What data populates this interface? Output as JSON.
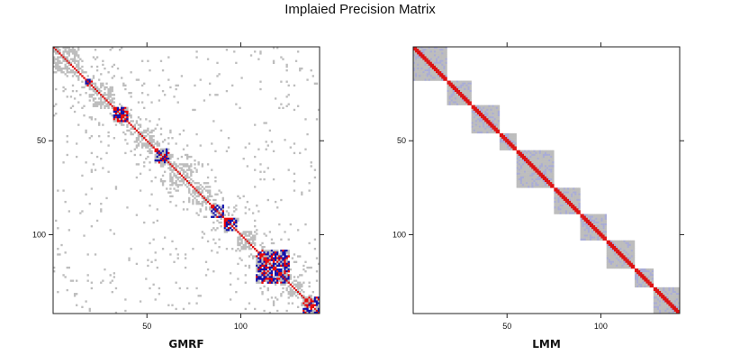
{
  "chart_data": {
    "type": "heatmap",
    "title": "Implaied Precision Matrix",
    "size": 142,
    "colors": {
      "weak": "#bdbdbd",
      "weak_blue": "#a9acd6",
      "diag": "#dd1111",
      "strong_red": "#ee0000",
      "strong_blue": "#1111aa"
    },
    "panels": [
      {
        "id": "gmrf",
        "xlabel": "GMRF",
        "x_ticks": [
          {
            "value": 50,
            "label": "50"
          },
          {
            "value": 100,
            "label": "100"
          }
        ],
        "y_ticks": [
          {
            "value": 50,
            "label": "50"
          },
          {
            "value": 100,
            "label": "100"
          }
        ],
        "blocks": [
          {
            "start": 0,
            "end": 14,
            "tone": "weak"
          },
          {
            "start": 17,
            "end": 21,
            "tone": "strong"
          },
          {
            "start": 21,
            "end": 32,
            "tone": "weak"
          },
          {
            "start": 32,
            "end": 40,
            "tone": "strong"
          },
          {
            "start": 44,
            "end": 54,
            "tone": "weak"
          },
          {
            "start": 54,
            "end": 62,
            "tone": "strong"
          },
          {
            "start": 62,
            "end": 74,
            "tone": "weak"
          },
          {
            "start": 74,
            "end": 84,
            "tone": "weak"
          },
          {
            "start": 84,
            "end": 91,
            "tone": "strong"
          },
          {
            "start": 91,
            "end": 98,
            "tone": "strong"
          },
          {
            "start": 98,
            "end": 108,
            "tone": "weak"
          },
          {
            "start": 108,
            "end": 126,
            "tone": "strong"
          },
          {
            "start": 126,
            "end": 133,
            "tone": "weak"
          },
          {
            "start": 133,
            "end": 142,
            "tone": "strong"
          }
        ]
      },
      {
        "id": "lmm",
        "xlabel": "LMM",
        "x_ticks": [
          {
            "value": 50,
            "label": "50"
          },
          {
            "value": 100,
            "label": "100"
          }
        ],
        "y_ticks": [
          {
            "value": 50,
            "label": "50"
          },
          {
            "value": 100,
            "label": "100"
          }
        ],
        "blocks": [
          {
            "start": 0,
            "end": 18
          },
          {
            "start": 18,
            "end": 31
          },
          {
            "start": 31,
            "end": 46
          },
          {
            "start": 46,
            "end": 55
          },
          {
            "start": 55,
            "end": 75
          },
          {
            "start": 75,
            "end": 89
          },
          {
            "start": 89,
            "end": 103
          },
          {
            "start": 103,
            "end": 118
          },
          {
            "start": 118,
            "end": 128
          },
          {
            "start": 128,
            "end": 142
          }
        ]
      }
    ]
  }
}
